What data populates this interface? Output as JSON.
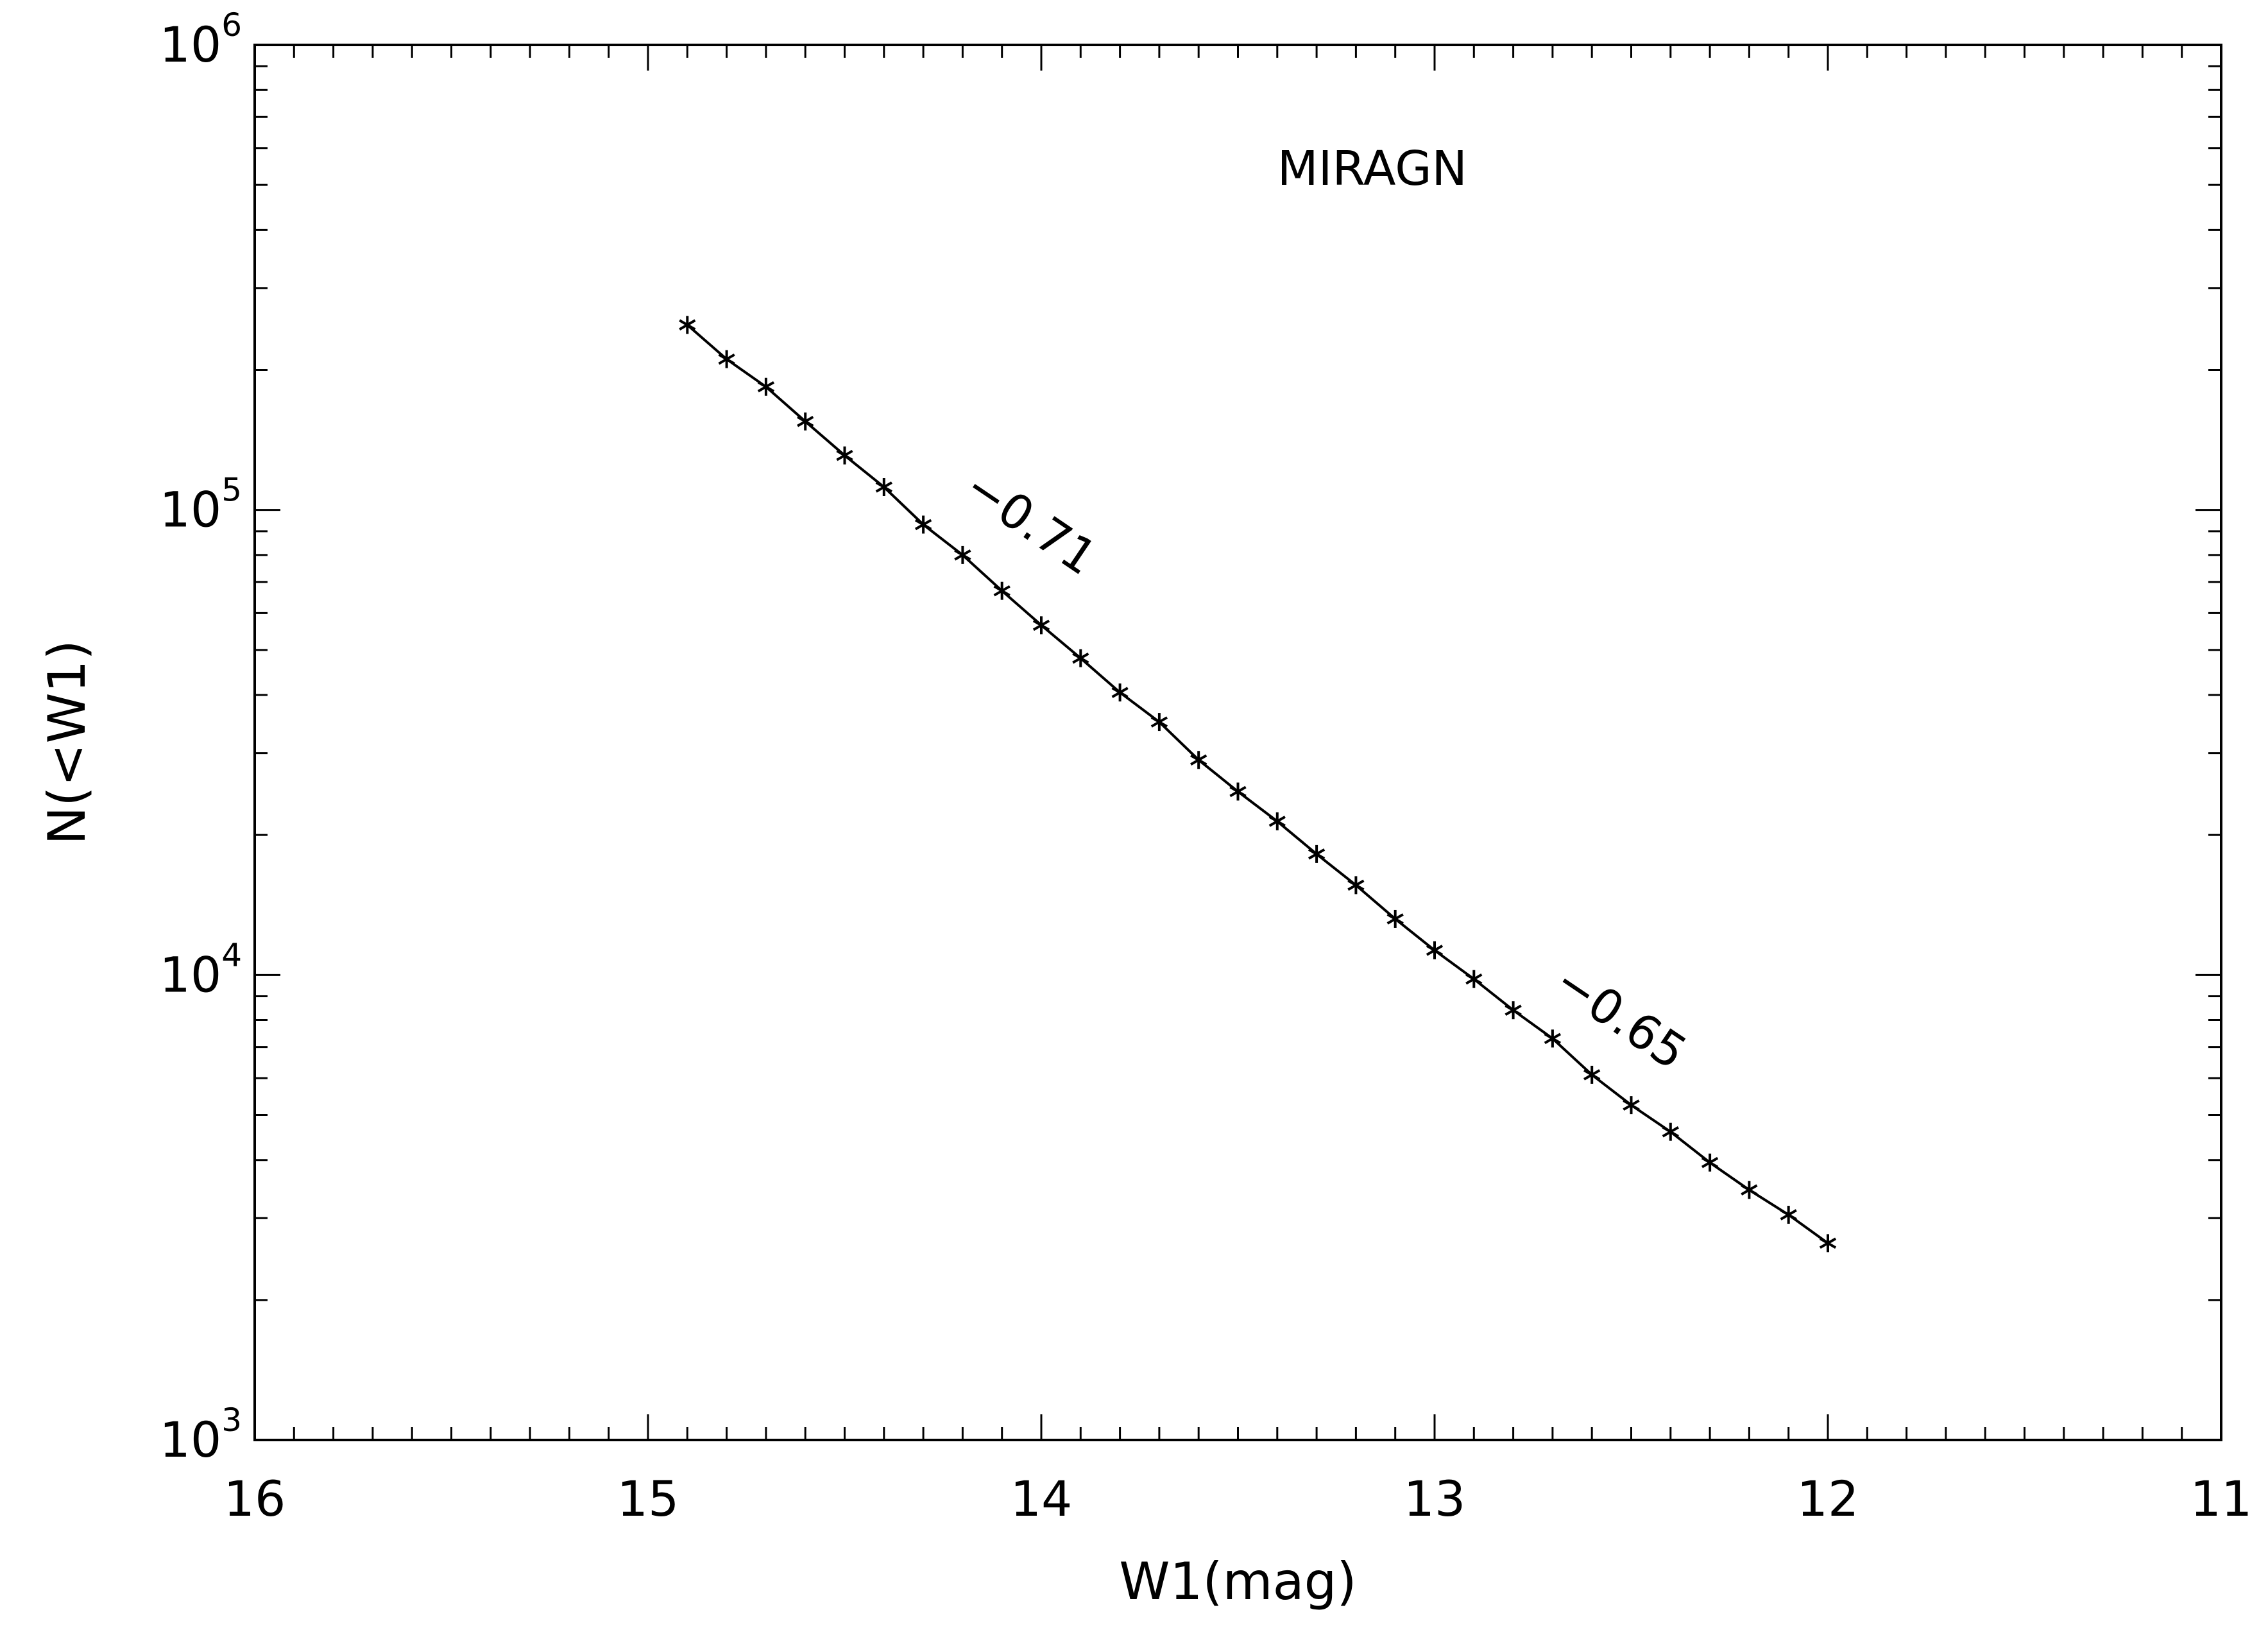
{
  "chart_data": {
    "type": "scatter",
    "title": "",
    "xlabel": "W1(mag)",
    "ylabel": "N(<W1)",
    "x_reversed": true,
    "xlim": [
      16,
      11
    ],
    "ylim": [
      1000,
      1000000
    ],
    "y_scale": "log",
    "x_ticks": [
      {
        "value": 16,
        "label": "16"
      },
      {
        "value": 15,
        "label": "15"
      },
      {
        "value": 14,
        "label": "14"
      },
      {
        "value": 13,
        "label": "13"
      },
      {
        "value": 12,
        "label": "12"
      },
      {
        "value": 11,
        "label": "11"
      }
    ],
    "y_ticks": [
      {
        "value": 1000,
        "base": "10",
        "exp": "3"
      },
      {
        "value": 10000,
        "base": "10",
        "exp": "4"
      },
      {
        "value": 100000,
        "base": "10",
        "exp": "5"
      },
      {
        "value": 1000000,
        "base": "10",
        "exp": "6"
      }
    ],
    "grid": false,
    "marker": "asterisk",
    "series": [
      {
        "x": [
          14.9,
          14.8,
          14.7,
          14.6,
          14.5,
          14.4,
          14.3,
          14.2,
          14.1,
          14.0,
          13.9,
          13.8,
          13.7,
          13.6,
          13.5,
          13.4,
          13.3,
          13.2,
          13.1,
          13.0,
          12.9,
          12.8,
          12.7,
          12.6,
          12.5,
          12.4,
          12.3,
          12.2,
          12.1,
          12.0
        ],
        "y": [
          250000,
          211000,
          184000,
          155000,
          131000,
          112000,
          93000,
          80000,
          67000,
          56500,
          48000,
          40500,
          35000,
          29000,
          24800,
          21400,
          18200,
          15600,
          13200,
          11300,
          9800,
          8400,
          7300,
          6100,
          5250,
          4600,
          3950,
          3450,
          3050,
          2650
        ]
      }
    ],
    "annotations": [
      {
        "text": "MIRAGN",
        "x": 13.4,
        "y": 500000
      },
      {
        "text": "−0.71",
        "x": 14.05,
        "y": 88000,
        "rotation_deg": 34
      },
      {
        "text": "−0.65",
        "x": 12.55,
        "y": 7600,
        "rotation_deg": 34
      }
    ]
  }
}
